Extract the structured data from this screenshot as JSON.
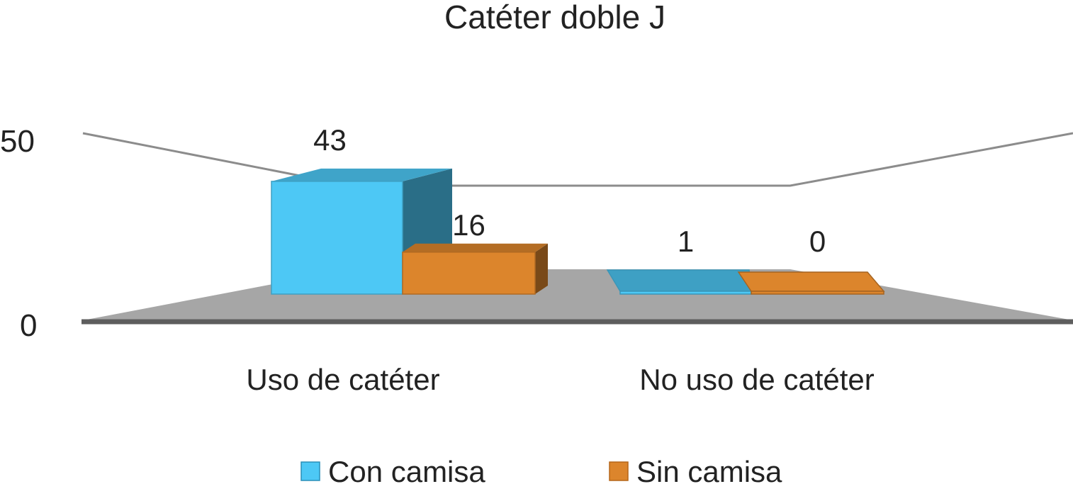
{
  "chart_data": {
    "type": "bar",
    "title": "Catéter doble J",
    "categories": [
      "Uso de catéter",
      "No uso de catéter"
    ],
    "series": [
      {
        "name": "Con camisa",
        "values": [
          43,
          1
        ],
        "color": "#4DC8F5"
      },
      {
        "name": "Sin camisa",
        "values": [
          16,
          0
        ],
        "color": "#DC852C"
      }
    ],
    "y_ticks": [
      "0",
      "50"
    ],
    "ylim": [
      0,
      50
    ],
    "data_labels": [
      "43",
      "16",
      "1",
      "0"
    ],
    "legend_position": "bottom",
    "grid": true,
    "floor_color": "#A6A6A6"
  }
}
